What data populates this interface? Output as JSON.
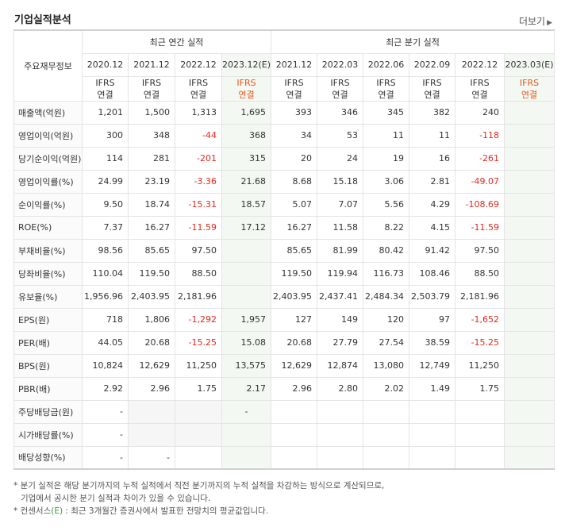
{
  "title": "기업실적분석",
  "more": "더보기",
  "header": {
    "row_label": "주요재무정보",
    "annual_group": "최근 연간 실적",
    "quarter_group": "최근 분기 실적",
    "annual_periods": [
      "2020.12",
      "2021.12",
      "2022.12",
      "2023.12(E)"
    ],
    "quarter_periods": [
      "2021.12",
      "2022.03",
      "2022.06",
      "2022.09",
      "2022.12",
      "2023.03(E)"
    ],
    "basis_top": "IFRS",
    "basis_bottom": "연결"
  },
  "rows": [
    {
      "label": "매출액(억원)",
      "values": [
        "1,201",
        "1,500",
        "1,313",
        "1,695",
        "393",
        "346",
        "345",
        "382",
        "240",
        ""
      ]
    },
    {
      "label": "영업이익(억원)",
      "values": [
        "300",
        "348",
        "-44",
        "368",
        "34",
        "53",
        "11",
        "11",
        "-118",
        ""
      ]
    },
    {
      "label": "당기순이익(억원)",
      "values": [
        "114",
        "281",
        "-201",
        "315",
        "20",
        "24",
        "19",
        "16",
        "-261",
        ""
      ]
    },
    {
      "label": "영업이익률(%)",
      "values": [
        "24.99",
        "23.19",
        "-3.36",
        "21.68",
        "8.68",
        "15.18",
        "3.06",
        "2.81",
        "-49.07",
        ""
      ]
    },
    {
      "label": "순이익률(%)",
      "values": [
        "9.50",
        "18.74",
        "-15.31",
        "18.57",
        "5.07",
        "7.07",
        "5.56",
        "4.29",
        "-108.69",
        ""
      ]
    },
    {
      "label": "ROE(%)",
      "values": [
        "7.37",
        "16.27",
        "-11.59",
        "17.12",
        "16.27",
        "11.58",
        "8.22",
        "4.15",
        "-11.59",
        ""
      ]
    },
    {
      "label": "부채비율(%)",
      "values": [
        "98.56",
        "85.65",
        "97.50",
        "",
        "85.65",
        "81.99",
        "80.42",
        "91.42",
        "97.50",
        ""
      ]
    },
    {
      "label": "당좌비율(%)",
      "values": [
        "110.04",
        "119.50",
        "88.50",
        "",
        "119.50",
        "119.94",
        "116.73",
        "108.46",
        "88.50",
        ""
      ]
    },
    {
      "label": "유보율(%)",
      "values": [
        "1,956.96",
        "2,403.95",
        "2,181.96",
        "",
        "2,403.95",
        "2,437.41",
        "2,484.34",
        "2,503.79",
        "2,181.96",
        ""
      ]
    },
    {
      "label": "EPS(원)",
      "values": [
        "718",
        "1,806",
        "-1,292",
        "1,957",
        "127",
        "149",
        "120",
        "97",
        "-1,652",
        ""
      ]
    },
    {
      "label": "PER(배)",
      "values": [
        "44.05",
        "20.68",
        "-15.25",
        "15.08",
        "20.68",
        "27.79",
        "27.54",
        "38.59",
        "-15.25",
        ""
      ]
    },
    {
      "label": "BPS(원)",
      "values": [
        "10,824",
        "12,629",
        "11,250",
        "13,575",
        "12,629",
        "12,874",
        "13,080",
        "12,749",
        "11,250",
        ""
      ]
    },
    {
      "label": "PBR(배)",
      "values": [
        "2.92",
        "2.96",
        "1.75",
        "2.17",
        "2.96",
        "2.80",
        "2.02",
        "1.49",
        "1.75",
        ""
      ]
    },
    {
      "label": "주당배당금(원)",
      "values": [
        "-",
        "",
        "",
        "-",
        "",
        "",
        "",
        "",
        "",
        ""
      ]
    },
    {
      "label": "시가배당률(%)",
      "values": [
        "-",
        "",
        "",
        "",
        "",
        "",
        "",
        "",
        "",
        ""
      ]
    },
    {
      "label": "배당성향(%)",
      "values": [
        "-",
        "-",
        "",
        "",
        "",
        "",
        "",
        "",
        "",
        ""
      ]
    }
  ],
  "blank_cells": {
    "13": [
      1,
      2
    ],
    "14": [
      1,
      2
    ]
  },
  "notes": {
    "line1": "* 분기 실적은 해당 분기까지의 누적 실적에서 직전 분기까지의 누적 실적을 차감하는 방식으로 계산되므로,",
    "line2": "기업에서 공시한 분기 실적과 차이가 있을 수 있습니다.",
    "line3_prefix": "* 컨센서스",
    "line3_marker": "(E)",
    "line3_suffix": " : 최근 3개월간 증권사에서 발표한 전망치의 평균값입니다."
  },
  "colors": {
    "negative": "#e4281c",
    "basis": "#e4571c",
    "estimate_bg": "#f3f8f3",
    "estimate_marker": "#3a9a3a"
  }
}
